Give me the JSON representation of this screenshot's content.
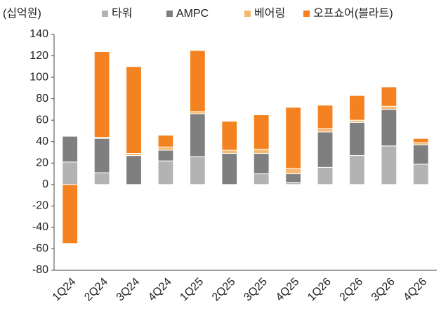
{
  "chart_data": {
    "type": "bar",
    "stacked": true,
    "y_label": "(십억원)",
    "categories": [
      "1Q24",
      "2Q24",
      "3Q24",
      "4Q24",
      "1Q25",
      "2Q25",
      "3Q25",
      "4Q25",
      "1Q26",
      "2Q26",
      "3Q26",
      "4Q26"
    ],
    "series": [
      {
        "name": "타워",
        "color": "#b3b3b3",
        "values": [
          21,
          11,
          0,
          22,
          26,
          0,
          10,
          2,
          16,
          27,
          36,
          19
        ]
      },
      {
        "name": "AMPC",
        "color": "#7f7f7f",
        "values": [
          24,
          32,
          27,
          10,
          40,
          29,
          19,
          8,
          33,
          31,
          34,
          18
        ]
      },
      {
        "name": "베어링",
        "color": "#f5b870",
        "values": [
          0,
          1,
          2,
          3,
          2,
          3,
          4,
          5,
          3,
          2,
          3,
          2
        ]
      },
      {
        "name": "오프쇼어(블라트)",
        "color": "#f58220",
        "values": [
          -55,
          80,
          81,
          11,
          57,
          27,
          32,
          57,
          22,
          23,
          18,
          4
        ]
      }
    ],
    "ylim": [
      -80,
      140
    ],
    "yticks": [
      -80,
      -60,
      -40,
      -20,
      0,
      20,
      40,
      60,
      80,
      100,
      120,
      140
    ],
    "legend": "top",
    "grid": false
  }
}
